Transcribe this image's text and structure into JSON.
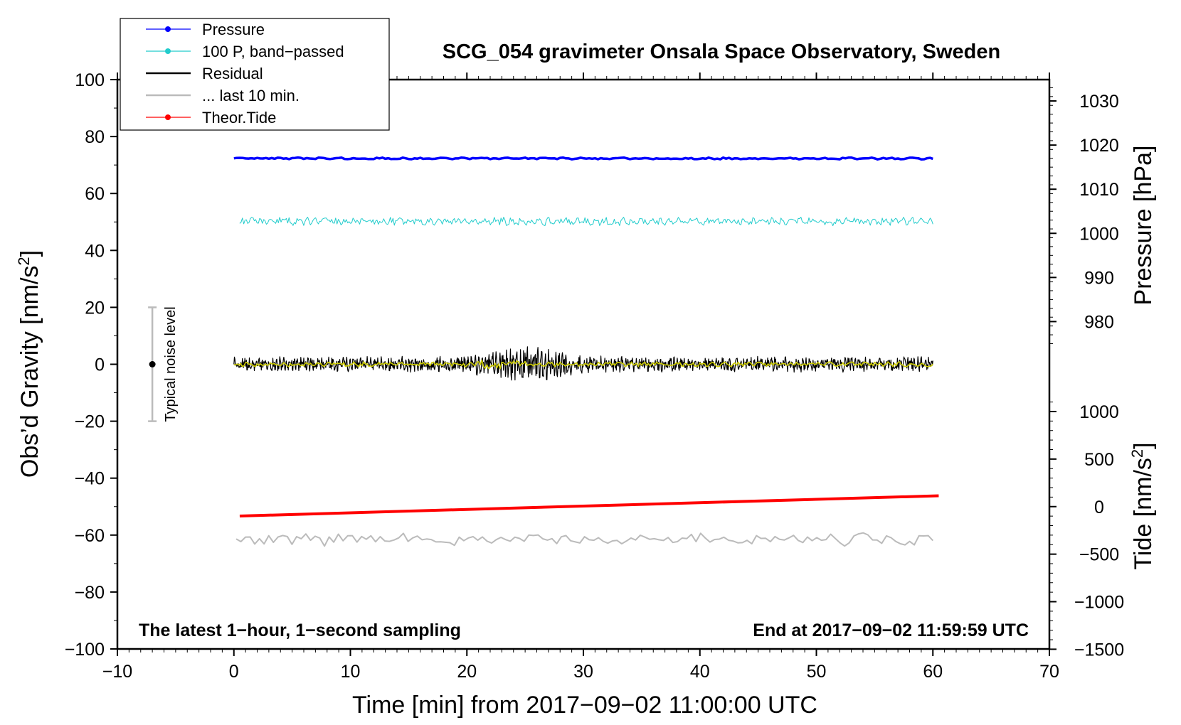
{
  "chart_data": {
    "type": "line",
    "title": "SCG_054 gravimeter Onsala Space Observatory, Sweden",
    "xlabel": "Time [min] from 2017−09−02 11:00:00 UTC",
    "ylabel": "Obs’d Gravity [nm/s²]",
    "ylabel_main": "Obs’d Gravity [nm/s",
    "ylabel_sup": "2",
    "ylabel_close": "]",
    "xlim": [
      -10,
      70
    ],
    "ylim": [
      -100,
      100
    ],
    "x_ticks": [
      -10,
      0,
      10,
      20,
      30,
      40,
      50,
      60,
      70
    ],
    "x_tick_labels": [
      "−10",
      "0",
      "10",
      "20",
      "30",
      "40",
      "50",
      "60",
      "70"
    ],
    "y_ticks": [
      -100,
      -80,
      -60,
      -40,
      -20,
      0,
      20,
      40,
      60,
      80,
      100
    ],
    "y_tick_labels": [
      "−100",
      "−80",
      "−60",
      "−40",
      "−20",
      "0",
      "20",
      "40",
      "60",
      "80",
      "100"
    ],
    "right_axis_pressure": {
      "label": "Pressure [hPa]",
      "ticks": [
        980,
        990,
        1000,
        1010,
        1020,
        1030
      ],
      "tick_labels": [
        "980",
        "990",
        "1000",
        "1010",
        "1020",
        "1030"
      ],
      "gravity_at_1000": 46,
      "gravity_per_10": 15.5
    },
    "right_axis_tide": {
      "label_main": "Tide [nm/s",
      "label_sup": "2",
      "label_close": "]",
      "ticks": [
        -1500,
        -1000,
        -500,
        0,
        500,
        1000
      ],
      "tick_labels": [
        "−1500",
        "−1000",
        "−500",
        "0",
        "500",
        "1000"
      ],
      "gravity_at_0": -50,
      "gravity_per_500": 16.7
    },
    "legend": {
      "position": "top-left",
      "entries": [
        {
          "label": "Pressure",
          "color": "#0000ff",
          "marker": true
        },
        {
          "label": "100 P, band−passed",
          "color": "#22cccc",
          "marker": true
        },
        {
          "label": "Residual",
          "color": "#000000",
          "marker": false
        },
        {
          "label": "... last 10 min.",
          "color": "#bbbbbb",
          "marker": false
        },
        {
          "label": "Theor.Tide",
          "color": "#ff0000",
          "marker": true
        }
      ]
    },
    "series": [
      {
        "name": "Pressure",
        "color": "#0000ff",
        "x_range": [
          0,
          60
        ],
        "level": 72.3,
        "amplitude": 0.35,
        "samples": 240,
        "seed": 3
      },
      {
        "name": "100 P, band−passed",
        "color": "#22cccc",
        "x_range": [
          0.5,
          60
        ],
        "level": 50.2,
        "amplitude": 1.6,
        "samples": 520,
        "seed": 11
      },
      {
        "name": "Residual",
        "color": "#000000",
        "x_range": [
          0,
          60
        ],
        "level": 0,
        "amplitude": 2.8,
        "samples": 1400,
        "seed": 29,
        "burst": {
          "center": 25,
          "width": 4,
          "gain": 2.3
        }
      },
      {
        "name": "Residual smoothed",
        "color": "#cccc00",
        "x_range": [
          0,
          60
        ],
        "level": 0,
        "amplitude": 0.9,
        "samples": 420,
        "seed": 41,
        "burst": {
          "center": 23,
          "width": 2.5,
          "gain": 2.4
        }
      },
      {
        "name": "Theor.Tide",
        "color": "#ff0000",
        "x_range": [
          0.5,
          60.5
        ],
        "y_start": -53.3,
        "y_end": -46.2
      },
      {
        "name": "... last 10 min.",
        "color": "#bbbbbb",
        "x_range": [
          0.2,
          60
        ],
        "level": -61.5,
        "amplitude": 2.4,
        "samples": 150,
        "seed": 57
      }
    ],
    "noise_bar": {
      "label": "Typical noise level",
      "x": -7,
      "y_center": 0,
      "y_low": -20,
      "y_high": 20
    },
    "annotations": {
      "left_note": "The latest 1−hour, 1−second sampling",
      "right_note": "End at 2017−09−02 11:59:59 UTC"
    },
    "right_labels": {
      "pressure": "Pressure [hPa]"
    }
  }
}
